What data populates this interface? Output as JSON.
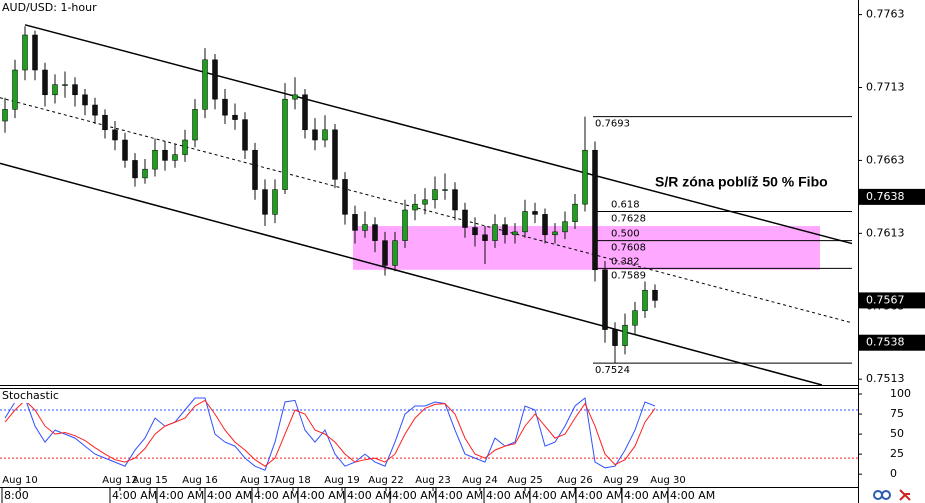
{
  "chart_data": [
    {
      "type": "candlestick",
      "title": "AUD/USD: 1-hour",
      "up_color": "#1f9e1f",
      "down_color": "#111111",
      "xlim": [
        -0.5,
        85.3
      ],
      "ylim": [
        0.7509,
        0.7773
      ],
      "yticks": [
        0.7763,
        0.7713,
        0.7663,
        0.7613,
        0.7563,
        0.7513
      ],
      "price_markers": [
        0.7638,
        0.7567,
        0.7538
      ],
      "ohlc": [
        [
          0.769,
          0.7706,
          0.7682,
          0.7698
        ],
        [
          0.7698,
          0.7732,
          0.7692,
          0.7725
        ],
        [
          0.7725,
          0.7755,
          0.7718,
          0.7749
        ],
        [
          0.7749,
          0.7752,
          0.7718,
          0.7725
        ],
        [
          0.7725,
          0.773,
          0.77,
          0.7708
        ],
        [
          0.7708,
          0.7722,
          0.7702,
          0.7715
        ],
        [
          0.7715,
          0.7724,
          0.7706,
          0.7715
        ],
        [
          0.7715,
          0.772,
          0.77,
          0.7708
        ],
        [
          0.7708,
          0.7712,
          0.7694,
          0.7701
        ],
        [
          0.7701,
          0.7706,
          0.7688,
          0.7694
        ],
        [
          0.7694,
          0.7698,
          0.7678,
          0.7684
        ],
        [
          0.7684,
          0.769,
          0.767,
          0.7677
        ],
        [
          0.7677,
          0.7682,
          0.7658,
          0.7663
        ],
        [
          0.7663,
          0.7668,
          0.7645,
          0.7651
        ],
        [
          0.7651,
          0.7664,
          0.7647,
          0.7657
        ],
        [
          0.7657,
          0.7678,
          0.7652,
          0.767
        ],
        [
          0.767,
          0.7676,
          0.7656,
          0.7663
        ],
        [
          0.7663,
          0.7674,
          0.7658,
          0.7667
        ],
        [
          0.7667,
          0.7684,
          0.7662,
          0.7677
        ],
        [
          0.7677,
          0.7705,
          0.7672,
          0.7698
        ],
        [
          0.7698,
          0.774,
          0.7692,
          0.7732
        ],
        [
          0.7732,
          0.7736,
          0.7698,
          0.7705
        ],
        [
          0.7705,
          0.7712,
          0.7688,
          0.7694
        ],
        [
          0.7694,
          0.7702,
          0.7684,
          0.7691
        ],
        [
          0.7691,
          0.7696,
          0.7664,
          0.767
        ],
        [
          0.767,
          0.7675,
          0.7636,
          0.7643
        ],
        [
          0.7643,
          0.765,
          0.7618,
          0.7626
        ],
        [
          0.7626,
          0.765,
          0.762,
          0.7643
        ],
        [
          0.7643,
          0.7716,
          0.764,
          0.7705
        ],
        [
          0.7705,
          0.772,
          0.7698,
          0.7708
        ],
        [
          0.7708,
          0.7712,
          0.7678,
          0.7684
        ],
        [
          0.7684,
          0.7692,
          0.767,
          0.7677
        ],
        [
          0.7677,
          0.7694,
          0.7672,
          0.7684
        ],
        [
          0.7684,
          0.7688,
          0.7644,
          0.765
        ],
        [
          0.765,
          0.7655,
          0.7619,
          0.7626
        ],
        [
          0.7626,
          0.7632,
          0.7606,
          0.7615
        ],
        [
          0.7615,
          0.7628,
          0.761,
          0.7619
        ],
        [
          0.7619,
          0.7624,
          0.76,
          0.7608
        ],
        [
          0.7608,
          0.7614,
          0.7584,
          0.7591
        ],
        [
          0.7591,
          0.7614,
          0.7587,
          0.7608
        ],
        [
          0.7608,
          0.7636,
          0.7603,
          0.7629
        ],
        [
          0.7629,
          0.764,
          0.7622,
          0.7633
        ],
        [
          0.7633,
          0.7644,
          0.7626,
          0.7636
        ],
        [
          0.7636,
          0.7652,
          0.763,
          0.7643
        ],
        [
          0.7643,
          0.7654,
          0.7636,
          0.7643
        ],
        [
          0.7643,
          0.7648,
          0.7622,
          0.7629
        ],
        [
          0.7629,
          0.7634,
          0.761,
          0.7617
        ],
        [
          0.7617,
          0.7624,
          0.7604,
          0.7612
        ],
        [
          0.7612,
          0.7618,
          0.7592,
          0.7608
        ],
        [
          0.7608,
          0.7626,
          0.7603,
          0.7619
        ],
        [
          0.7619,
          0.7624,
          0.7606,
          0.7612
        ],
        [
          0.7612,
          0.762,
          0.7606,
          0.7614
        ],
        [
          0.7614,
          0.7636,
          0.761,
          0.7628
        ],
        [
          0.7628,
          0.7634,
          0.762,
          0.7626
        ],
        [
          0.7626,
          0.763,
          0.7606,
          0.7612
        ],
        [
          0.7612,
          0.762,
          0.7606,
          0.7614
        ],
        [
          0.7614,
          0.7628,
          0.7609,
          0.7621
        ],
        [
          0.7621,
          0.764,
          0.7616,
          0.7633
        ],
        [
          0.7633,
          0.7693,
          0.7628,
          0.767
        ],
        [
          0.767,
          0.7676,
          0.758,
          0.7588
        ],
        [
          0.7588,
          0.7594,
          0.7538,
          0.7547
        ],
        [
          0.7547,
          0.7552,
          0.7524,
          0.7536
        ],
        [
          0.7536,
          0.7558,
          0.753,
          0.755
        ],
        [
          0.755,
          0.7566,
          0.7544,
          0.756
        ],
        [
          0.756,
          0.758,
          0.7555,
          0.7574
        ],
        [
          0.7574,
          0.7578,
          0.7562,
          0.7567
        ]
      ],
      "trendlines": [
        {
          "x": [
            2,
            84.7
          ],
          "y": [
            0.7756,
            0.7606
          ],
          "dashed": false
        },
        {
          "x": [
            -0.5,
            84.5
          ],
          "y": [
            0.7706,
            0.7552
          ],
          "dashed": true
        },
        {
          "x": [
            -0.5,
            81.7
          ],
          "y": [
            0.7661,
            0.7509
          ],
          "dashed": false
        }
      ],
      "zone": {
        "label": "S/R zóna poblíž 50 % Fibo",
        "x": [
          34.8,
          81.5
        ],
        "low": 0.7588,
        "high": 0.7618,
        "color": "#ff99ff"
      },
      "fibonacci": {
        "x": [
          58.8,
          84.7
        ],
        "levels": [
          {
            "price": 0.7693
          },
          {
            "ratio": 0.618,
            "price": 0.7628
          },
          {
            "ratio": {
              "value": 0.5,
              "label": "0.500"
            },
            "price": 0.7608
          },
          {
            "ratio": 0.382,
            "price": 0.7589
          },
          {
            "price": 0.7524
          }
        ]
      }
    },
    {
      "type": "line",
      "title": "Stochastic",
      "xlim": [
        -0.5,
        85.3
      ],
      "ylim": [
        -16,
        107.5
      ],
      "yticks": [
        0,
        25,
        50,
        75,
        100
      ],
      "levels": [
        {
          "value": 80,
          "color": "#3050ff"
        },
        {
          "value": 20,
          "color": "#ff2020"
        }
      ],
      "series": [
        {
          "color": "#3050ff",
          "values": [
            70,
            90,
            95,
            60,
            40,
            55,
            50,
            45,
            35,
            25,
            20,
            15,
            10,
            30,
            45,
            70,
            60,
            65,
            80,
            95,
            95,
            50,
            40,
            35,
            20,
            10,
            5,
            40,
            90,
            92,
            55,
            40,
            55,
            25,
            10,
            15,
            25,
            15,
            10,
            40,
            75,
            85,
            85,
            90,
            88,
            55,
            25,
            20,
            15,
            45,
            35,
            40,
            85,
            80,
            35,
            40,
            60,
            85,
            95,
            15,
            8,
            10,
            30,
            55,
            90,
            85
          ]
        },
        {
          "color": "#ff2020",
          "values": [
            65,
            80,
            92,
            80,
            60,
            50,
            52,
            48,
            42,
            33,
            25,
            18,
            15,
            20,
            32,
            50,
            60,
            65,
            70,
            85,
            92,
            75,
            55,
            40,
            30,
            18,
            10,
            20,
            50,
            80,
            75,
            55,
            50,
            40,
            25,
            15,
            18,
            20,
            15,
            25,
            50,
            70,
            82,
            87,
            88,
            75,
            45,
            25,
            20,
            30,
            35,
            38,
            60,
            75,
            60,
            45,
            50,
            70,
            88,
            60,
            25,
            12,
            18,
            35,
            65,
            82
          ]
        }
      ],
      "xticks": [
        {
          "value": 1.5,
          "label": "Aug 10"
        },
        {
          "value": 11.5,
          "label": "Aug 12"
        },
        {
          "value": 14.5,
          "label": "Aug 15"
        },
        {
          "value": 19.5,
          "label": "Aug 16"
        },
        {
          "value": 25.3,
          "label": "Aug 17"
        },
        {
          "value": 28.8,
          "label": "Aug 18"
        },
        {
          "value": 33.7,
          "label": "Aug 19"
        },
        {
          "value": 38.1,
          "label": "Aug 22"
        },
        {
          "value": 42.8,
          "label": "Aug 23"
        },
        {
          "value": 47.5,
          "label": "Aug 24"
        },
        {
          "value": 52,
          "label": "Aug 25"
        },
        {
          "value": 57,
          "label": "Aug 26"
        },
        {
          "value": 61.6,
          "label": "Aug 29"
        },
        {
          "value": 66.3,
          "label": "Aug 30"
        }
      ],
      "time_labels": [
        {
          "value": -0.3,
          "label": "8:00"
        },
        {
          "value": 10.5,
          "label": "4:00 AM"
        },
        {
          "value": 15.2,
          "label": "4:00 AM"
        },
        {
          "value": 20,
          "label": "4:00 AM"
        },
        {
          "value": 24.7,
          "label": "4:00 AM"
        },
        {
          "value": 29.3,
          "label": "4:00 AM"
        },
        {
          "value": 34,
          "label": "4:00 AM"
        },
        {
          "value": 38.5,
          "label": "4:00 AM"
        },
        {
          "value": 43.1,
          "label": "4:00 AM"
        },
        {
          "value": 47.9,
          "label": "4:00 AM"
        },
        {
          "value": 52.5,
          "label": "4:00 AM"
        },
        {
          "value": 57.1,
          "label": "4:00 AM"
        },
        {
          "value": 61.7,
          "label": "4:00 AM"
        },
        {
          "value": 66.3,
          "label": "4:00 AM"
        }
      ]
    }
  ]
}
